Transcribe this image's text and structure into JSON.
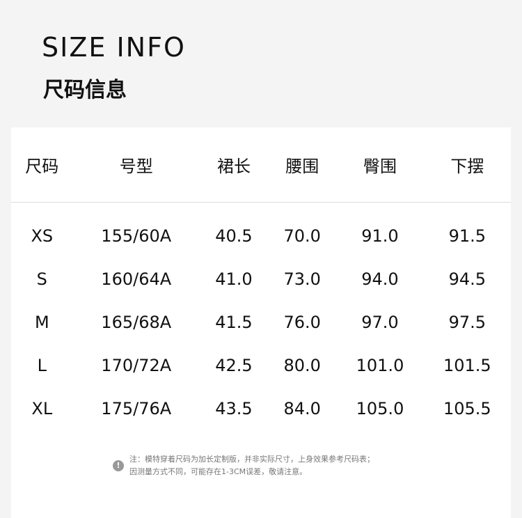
{
  "header": {
    "title_en": "SIZE INFO",
    "title_cn": "尺码信息"
  },
  "table": {
    "columns": [
      "尺码",
      "号型",
      "裙长",
      "腰围",
      "臀围",
      "下摆"
    ],
    "rows": [
      [
        "XS",
        "155/60A",
        "40.5",
        "70.0",
        "91.0",
        "91.5"
      ],
      [
        "S",
        "160/64A",
        "41.0",
        "73.0",
        "94.0",
        "94.5"
      ],
      [
        "M",
        "165/68A",
        "41.5",
        "76.0",
        "97.0",
        "97.5"
      ],
      [
        "L",
        "170/72A",
        "42.5",
        "80.0",
        "101.0",
        "101.5"
      ],
      [
        "XL",
        "175/76A",
        "43.5",
        "84.0",
        "105.0",
        "105.5"
      ]
    ]
  },
  "note": {
    "icon": "exclamation-icon",
    "line1": "注：模特穿着尺码为加长定制版，并非实际尺寸，上身效果参考尺码表；",
    "line2": "因测量方式不同，可能存在1-3CM误差，敬请注意。"
  }
}
